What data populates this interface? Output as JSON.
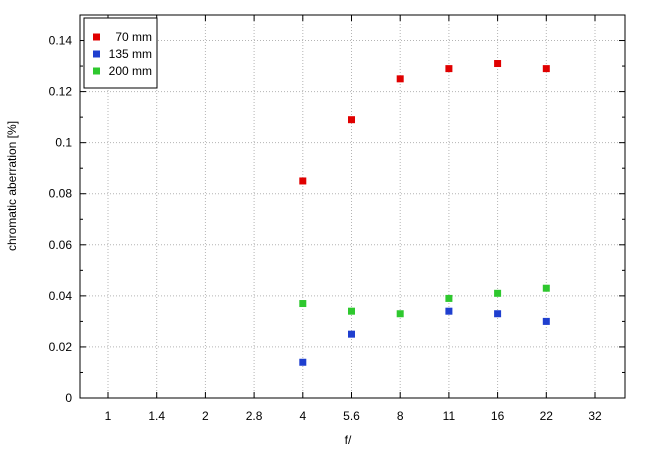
{
  "chart_data": {
    "type": "scatter",
    "xlabel": "f/",
    "ylabel": "chromatic aberration [%]",
    "x_scale": "log2-aperture",
    "x_ticks": [
      "1",
      "1.4",
      "2",
      "2.8",
      "4",
      "5.6",
      "8",
      "11",
      "16",
      "22",
      "32"
    ],
    "ylim": [
      0,
      0.15
    ],
    "y_ticks": [
      "0",
      "0.02",
      "0.04",
      "0.06",
      "0.08",
      "0.1",
      "0.12",
      "0.14"
    ],
    "y_tick_values": [
      0,
      0.02,
      0.04,
      0.06,
      0.08,
      0.1,
      0.12,
      0.14
    ],
    "y_minor_step": 0.01,
    "grid": true,
    "legend_position": "top-left",
    "series": [
      {
        "name": "70 mm",
        "color": "#e00000",
        "x": [
          "4",
          "5.6",
          "8",
          "11",
          "16",
          "22"
        ],
        "y": [
          0.085,
          0.109,
          0.125,
          0.129,
          0.131,
          0.129
        ]
      },
      {
        "name": "135 mm",
        "color": "#1f3fcf",
        "x": [
          "4",
          "5.6",
          "8",
          "11",
          "16",
          "22"
        ],
        "y": [
          0.014,
          0.025,
          null,
          0.034,
          0.033,
          0.03
        ]
      },
      {
        "name": "200 mm",
        "color": "#2ec82e",
        "x": [
          "4",
          "5.6",
          "8",
          "11",
          "16",
          "22"
        ],
        "y": [
          0.037,
          0.034,
          0.033,
          0.039,
          0.041,
          0.043
        ]
      }
    ]
  }
}
